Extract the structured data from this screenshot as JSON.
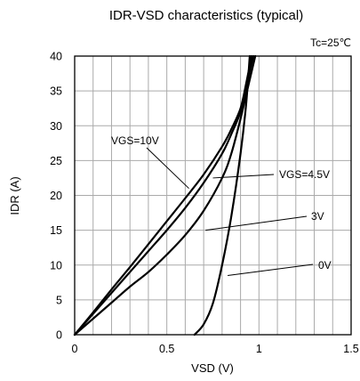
{
  "chart_data": {
    "type": "line",
    "title": "IDR-VSD characteristics (typical)",
    "condition": "Tc=25℃",
    "xlabel": "VSD (V)",
    "ylabel": "IDR (A)",
    "xlim": [
      0,
      1.5
    ],
    "ylim": [
      0,
      40
    ],
    "xticks": [
      0,
      0.5,
      1,
      1.5
    ],
    "xtick_labels": [
      "0",
      "0.5",
      "1",
      "1.5"
    ],
    "yticks": [
      0,
      5,
      10,
      15,
      20,
      25,
      30,
      35,
      40
    ],
    "ytick_labels": [
      "0",
      "5",
      "10",
      "15",
      "20",
      "25",
      "30",
      "35",
      "40"
    ],
    "grid": true,
    "series": [
      {
        "name": "VGS=10V",
        "x": [
          0,
          0.1,
          0.2,
          0.3,
          0.4,
          0.5,
          0.6,
          0.7,
          0.8,
          0.85,
          0.9,
          0.93,
          0.96
        ],
        "y": [
          0,
          3.2,
          6.5,
          9.7,
          13,
          16.3,
          19.6,
          23,
          27,
          29.5,
          32.5,
          36,
          40
        ]
      },
      {
        "name": "VGS=4.5V",
        "x": [
          0,
          0.1,
          0.2,
          0.3,
          0.4,
          0.5,
          0.6,
          0.7,
          0.8,
          0.85,
          0.9,
          0.93,
          0.97
        ],
        "y": [
          0,
          3,
          6,
          9,
          12,
          15,
          18.2,
          21.8,
          26,
          28.8,
          32,
          35.5,
          40
        ]
      },
      {
        "name": "3V",
        "x": [
          0,
          0.1,
          0.2,
          0.3,
          0.4,
          0.5,
          0.6,
          0.7,
          0.8,
          0.85,
          0.9,
          0.94,
          0.98
        ],
        "y": [
          0,
          2.3,
          4.6,
          6.9,
          9,
          11.5,
          14.3,
          17.8,
          22.5,
          26,
          31,
          35.5,
          40
        ]
      },
      {
        "name": "0V",
        "x": [
          0.65,
          0.7,
          0.75,
          0.8,
          0.85,
          0.9,
          0.93,
          0.95
        ],
        "y": [
          0,
          1.5,
          4.5,
          10,
          17,
          26,
          33,
          40
        ]
      }
    ],
    "annotations": [
      {
        "label": "VGS=10V",
        "points_to": {
          "x": 0.62,
          "y": 21
        }
      },
      {
        "label": "VGS=4.5V",
        "points_to": {
          "x": 0.75,
          "y": 22.5
        }
      },
      {
        "label": "3V",
        "points_to": {
          "x": 0.71,
          "y": 15
        }
      },
      {
        "label": "0V",
        "points_to": {
          "x": 0.83,
          "y": 8.5
        }
      }
    ]
  }
}
